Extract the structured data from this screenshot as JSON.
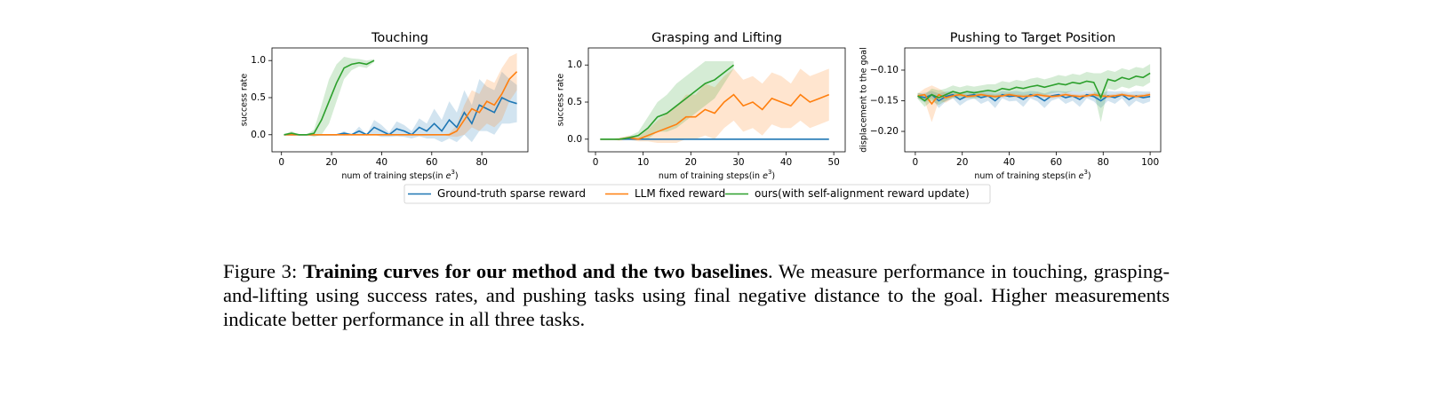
{
  "chart_data": [
    {
      "type": "line",
      "title": "Touching",
      "ylabel": "success rate",
      "xlabel": [
        "num of training steps(in ",
        "e",
        "3",
        ")"
      ],
      "xlim": [
        -3.8,
        98.4
      ],
      "ylim": [
        -0.23,
        1.17
      ],
      "xticks": [
        0,
        20,
        40,
        60,
        80
      ],
      "yticks": [
        {
          "value": 0,
          "label": "0.0"
        },
        {
          "value": 0.5,
          "label": "0.5"
        },
        {
          "value": 1,
          "label": "1.0"
        }
      ],
      "x": [
        1,
        4,
        7,
        10,
        13,
        16,
        19,
        22,
        25,
        28,
        31,
        34,
        37,
        40,
        43,
        46,
        49,
        52,
        55,
        58,
        61,
        64,
        67,
        70,
        73,
        76,
        79,
        82,
        85,
        88,
        91,
        94
      ],
      "series": [
        {
          "name": "Ground-truth sparse reward",
          "color": "#1f77b4",
          "values": [
            0,
            0,
            0,
            0,
            0,
            0,
            0,
            0,
            0.02,
            0,
            0.05,
            0,
            0.1,
            0.05,
            0,
            0.08,
            0.05,
            0,
            0.1,
            0.05,
            0.15,
            0.05,
            0.2,
            0.1,
            0.3,
            0.15,
            0.4,
            0.35,
            0.3,
            0.5,
            0.45,
            0.42
          ],
          "std": [
            0,
            0,
            0,
            0,
            0,
            0,
            0,
            0,
            0.03,
            0,
            0.06,
            0,
            0.1,
            0.08,
            0.03,
            0.1,
            0.08,
            0.05,
            0.12,
            0.1,
            0.2,
            0.15,
            0.25,
            0.2,
            0.3,
            0.25,
            0.35,
            0.3,
            0.3,
            0.35,
            0.3,
            0.25
          ]
        },
        {
          "name": "LLM fixed reward",
          "color": "#ff7f0e",
          "values": [
            0,
            0,
            0,
            0,
            0,
            0,
            0,
            0,
            0,
            0,
            0,
            0,
            0,
            0,
            0,
            0,
            0,
            0,
            0,
            0,
            0,
            0,
            0,
            0.05,
            0.2,
            0.35,
            0.3,
            0.45,
            0.4,
            0.55,
            0.75,
            0.85
          ],
          "std": [
            0,
            0,
            0,
            0,
            0,
            0,
            0,
            0,
            0,
            0,
            0,
            0,
            0,
            0,
            0,
            0,
            0,
            0,
            0,
            0,
            0,
            0,
            0.02,
            0.08,
            0.2,
            0.25,
            0.25,
            0.3,
            0.3,
            0.35,
            0.3,
            0.25
          ]
        },
        {
          "name": "ours(with self-alignment reward update)",
          "color": "#2ca02c",
          "values": [
            0,
            0.02,
            0,
            0,
            0.02,
            0.2,
            0.45,
            0.7,
            0.9,
            0.95,
            0.97,
            0.95,
            1,
            null,
            null,
            null,
            null,
            null,
            null,
            null,
            null,
            null,
            null,
            null,
            null,
            null,
            null,
            null,
            null,
            null,
            null,
            null
          ],
          "std": [
            0,
            0.03,
            0,
            0,
            0.05,
            0.2,
            0.3,
            0.25,
            0.15,
            0.08,
            0.05,
            0.05,
            0.02,
            null,
            null,
            null,
            null,
            null,
            null,
            null,
            null,
            null,
            null,
            null,
            null,
            null,
            null,
            null,
            null,
            null,
            null,
            null
          ]
        }
      ]
    },
    {
      "type": "line",
      "title": "Grasping and Lifting",
      "ylabel": "success rate",
      "xlabel": [
        "num of training steps(in ",
        "e",
        "3",
        ")"
      ],
      "xlim": [
        -1.5,
        52.4
      ],
      "ylim": [
        -0.17,
        1.23
      ],
      "xticks": [
        0,
        10,
        20,
        30,
        40,
        50
      ],
      "yticks": [
        {
          "value": 0,
          "label": "0.0"
        },
        {
          "value": 0.5,
          "label": "0.5"
        },
        {
          "value": 1,
          "label": "1.0"
        }
      ],
      "x": [
        1,
        3,
        5,
        7,
        9,
        11,
        13,
        15,
        17,
        19,
        21,
        23,
        25,
        27,
        29,
        31,
        33,
        35,
        37,
        39,
        41,
        43,
        45,
        47,
        49
      ],
      "series": [
        {
          "color": "#1f77b4",
          "values": [
            0,
            0,
            0,
            0,
            0,
            0,
            0,
            0,
            0,
            0,
            0,
            0,
            0,
            0,
            0,
            0,
            0,
            0,
            0,
            0,
            0,
            0,
            0,
            0,
            0
          ],
          "std": [
            0,
            0,
            0,
            0,
            0,
            0,
            0,
            0,
            0,
            0,
            0,
            0,
            0,
            0,
            0,
            0,
            0,
            0,
            0,
            0,
            0,
            0,
            0,
            0,
            0
          ]
        },
        {
          "color": "#ff7f0e",
          "values": [
            0,
            0,
            0,
            0.02,
            0,
            0.05,
            0.1,
            0.15,
            0.2,
            0.3,
            0.3,
            0.4,
            0.35,
            0.5,
            0.6,
            0.45,
            0.5,
            0.4,
            0.55,
            0.5,
            0.45,
            0.6,
            0.5,
            0.55,
            0.6
          ],
          "std": [
            0,
            0,
            0.02,
            0.03,
            0.03,
            0.08,
            0.15,
            0.2,
            0.25,
            0.3,
            0.3,
            0.35,
            0.35,
            0.35,
            0.35,
            0.35,
            0.35,
            0.35,
            0.35,
            0.35,
            0.3,
            0.35,
            0.35,
            0.35,
            0.35
          ]
        },
        {
          "color": "#2ca02c",
          "values": [
            0,
            0,
            0,
            0.02,
            0.05,
            0.15,
            0.3,
            0.35,
            0.45,
            0.55,
            0.65,
            0.75,
            0.8,
            0.9,
            1,
            null,
            null,
            null,
            null,
            null,
            null,
            null,
            null,
            null,
            null
          ],
          "std": [
            0,
            0,
            0,
            0.02,
            0.05,
            0.15,
            0.2,
            0.25,
            0.3,
            0.3,
            0.3,
            0.3,
            0.25,
            0.15,
            0.05,
            null,
            null,
            null,
            null,
            null,
            null,
            null,
            null,
            null,
            null
          ]
        }
      ]
    },
    {
      "type": "line",
      "title": "Pushing to Target Position",
      "ylabel": "displacement to the goal",
      "xlabel": [
        "num of training steps(in ",
        "e",
        "3",
        ")"
      ],
      "xlim": [
        -4.5,
        104.5
      ],
      "ylim": [
        -0.2333,
        -0.0638
      ],
      "xticks": [
        0,
        20,
        40,
        60,
        80,
        100
      ],
      "yticks": [
        {
          "value": -0.2,
          "label": "−0.20"
        },
        {
          "value": -0.15,
          "label": "−0.15"
        },
        {
          "value": -0.1,
          "label": "−0.10"
        }
      ],
      "x": [
        1,
        4,
        7,
        10,
        13,
        16,
        19,
        22,
        25,
        28,
        31,
        34,
        37,
        40,
        43,
        46,
        49,
        52,
        55,
        58,
        61,
        64,
        67,
        70,
        73,
        76,
        79,
        82,
        85,
        88,
        91,
        94,
        97,
        100
      ],
      "series": [
        {
          "color": "#1f77b4",
          "values": [
            -0.142,
            -0.145,
            -0.14,
            -0.15,
            -0.143,
            -0.14,
            -0.148,
            -0.142,
            -0.14,
            -0.145,
            -0.142,
            -0.15,
            -0.14,
            -0.143,
            -0.142,
            -0.148,
            -0.14,
            -0.143,
            -0.15,
            -0.142,
            -0.14,
            -0.145,
            -0.142,
            -0.148,
            -0.14,
            -0.143,
            -0.15,
            -0.142,
            -0.145,
            -0.14,
            -0.148,
            -0.142,
            -0.145,
            -0.143
          ],
          "std": [
            0.004,
            0.008,
            0.006,
            0.012,
            0.008,
            0.006,
            0.01,
            0.008,
            0.006,
            0.01,
            0.008,
            0.012,
            0.006,
            0.008,
            0.008,
            0.012,
            0.006,
            0.008,
            0.012,
            0.008,
            0.006,
            0.01,
            0.008,
            0.012,
            0.006,
            0.008,
            0.012,
            0.008,
            0.01,
            0.006,
            0.012,
            0.008,
            0.01,
            0.008
          ]
        },
        {
          "color": "#ff7f0e",
          "values": [
            -0.142,
            -0.14,
            -0.155,
            -0.14,
            -0.145,
            -0.142,
            -0.14,
            -0.143,
            -0.142,
            -0.14,
            -0.142,
            -0.143,
            -0.142,
            -0.14,
            -0.142,
            -0.143,
            -0.142,
            -0.14,
            -0.142,
            -0.143,
            -0.142,
            -0.14,
            -0.142,
            -0.143,
            -0.142,
            -0.14,
            -0.142,
            -0.143,
            -0.142,
            -0.14,
            -0.142,
            -0.143,
            -0.142,
            -0.14
          ],
          "std": [
            0.004,
            0.01,
            0.03,
            0.01,
            0.008,
            0.004,
            0.003,
            0.003,
            0.003,
            0.003,
            0.003,
            0.003,
            0.003,
            0.003,
            0.003,
            0.003,
            0.003,
            0.003,
            0.003,
            0.003,
            0.003,
            0.003,
            0.003,
            0.003,
            0.003,
            0.003,
            0.003,
            0.003,
            0.003,
            0.003,
            0.003,
            0.003,
            0.003,
            0.003
          ]
        },
        {
          "color": "#2ca02c",
          "values": [
            -0.142,
            -0.15,
            -0.14,
            -0.145,
            -0.14,
            -0.135,
            -0.138,
            -0.135,
            -0.137,
            -0.135,
            -0.133,
            -0.135,
            -0.13,
            -0.132,
            -0.128,
            -0.13,
            -0.127,
            -0.125,
            -0.128,
            -0.125,
            -0.122,
            -0.124,
            -0.12,
            -0.122,
            -0.118,
            -0.12,
            -0.145,
            -0.115,
            -0.118,
            -0.112,
            -0.115,
            -0.11,
            -0.112,
            -0.105
          ],
          "std": [
            0.005,
            0.01,
            0.01,
            0.012,
            0.01,
            0.01,
            0.01,
            0.01,
            0.01,
            0.01,
            0.01,
            0.012,
            0.012,
            0.012,
            0.012,
            0.012,
            0.013,
            0.013,
            0.013,
            0.013,
            0.014,
            0.014,
            0.014,
            0.014,
            0.015,
            0.015,
            0.04,
            0.015,
            0.015,
            0.015,
            0.015,
            0.015,
            0.015,
            0.015
          ]
        }
      ]
    }
  ],
  "caption": {
    "label": "Figure 3:",
    "bold": "Training curves for our method and the two baselines",
    "text": ".  We measure performance in touching, grasping-and-lifting using success rates, and pushing tasks using final negative distance to the goal.  Higher measurements indicate better performance in all three tasks."
  }
}
